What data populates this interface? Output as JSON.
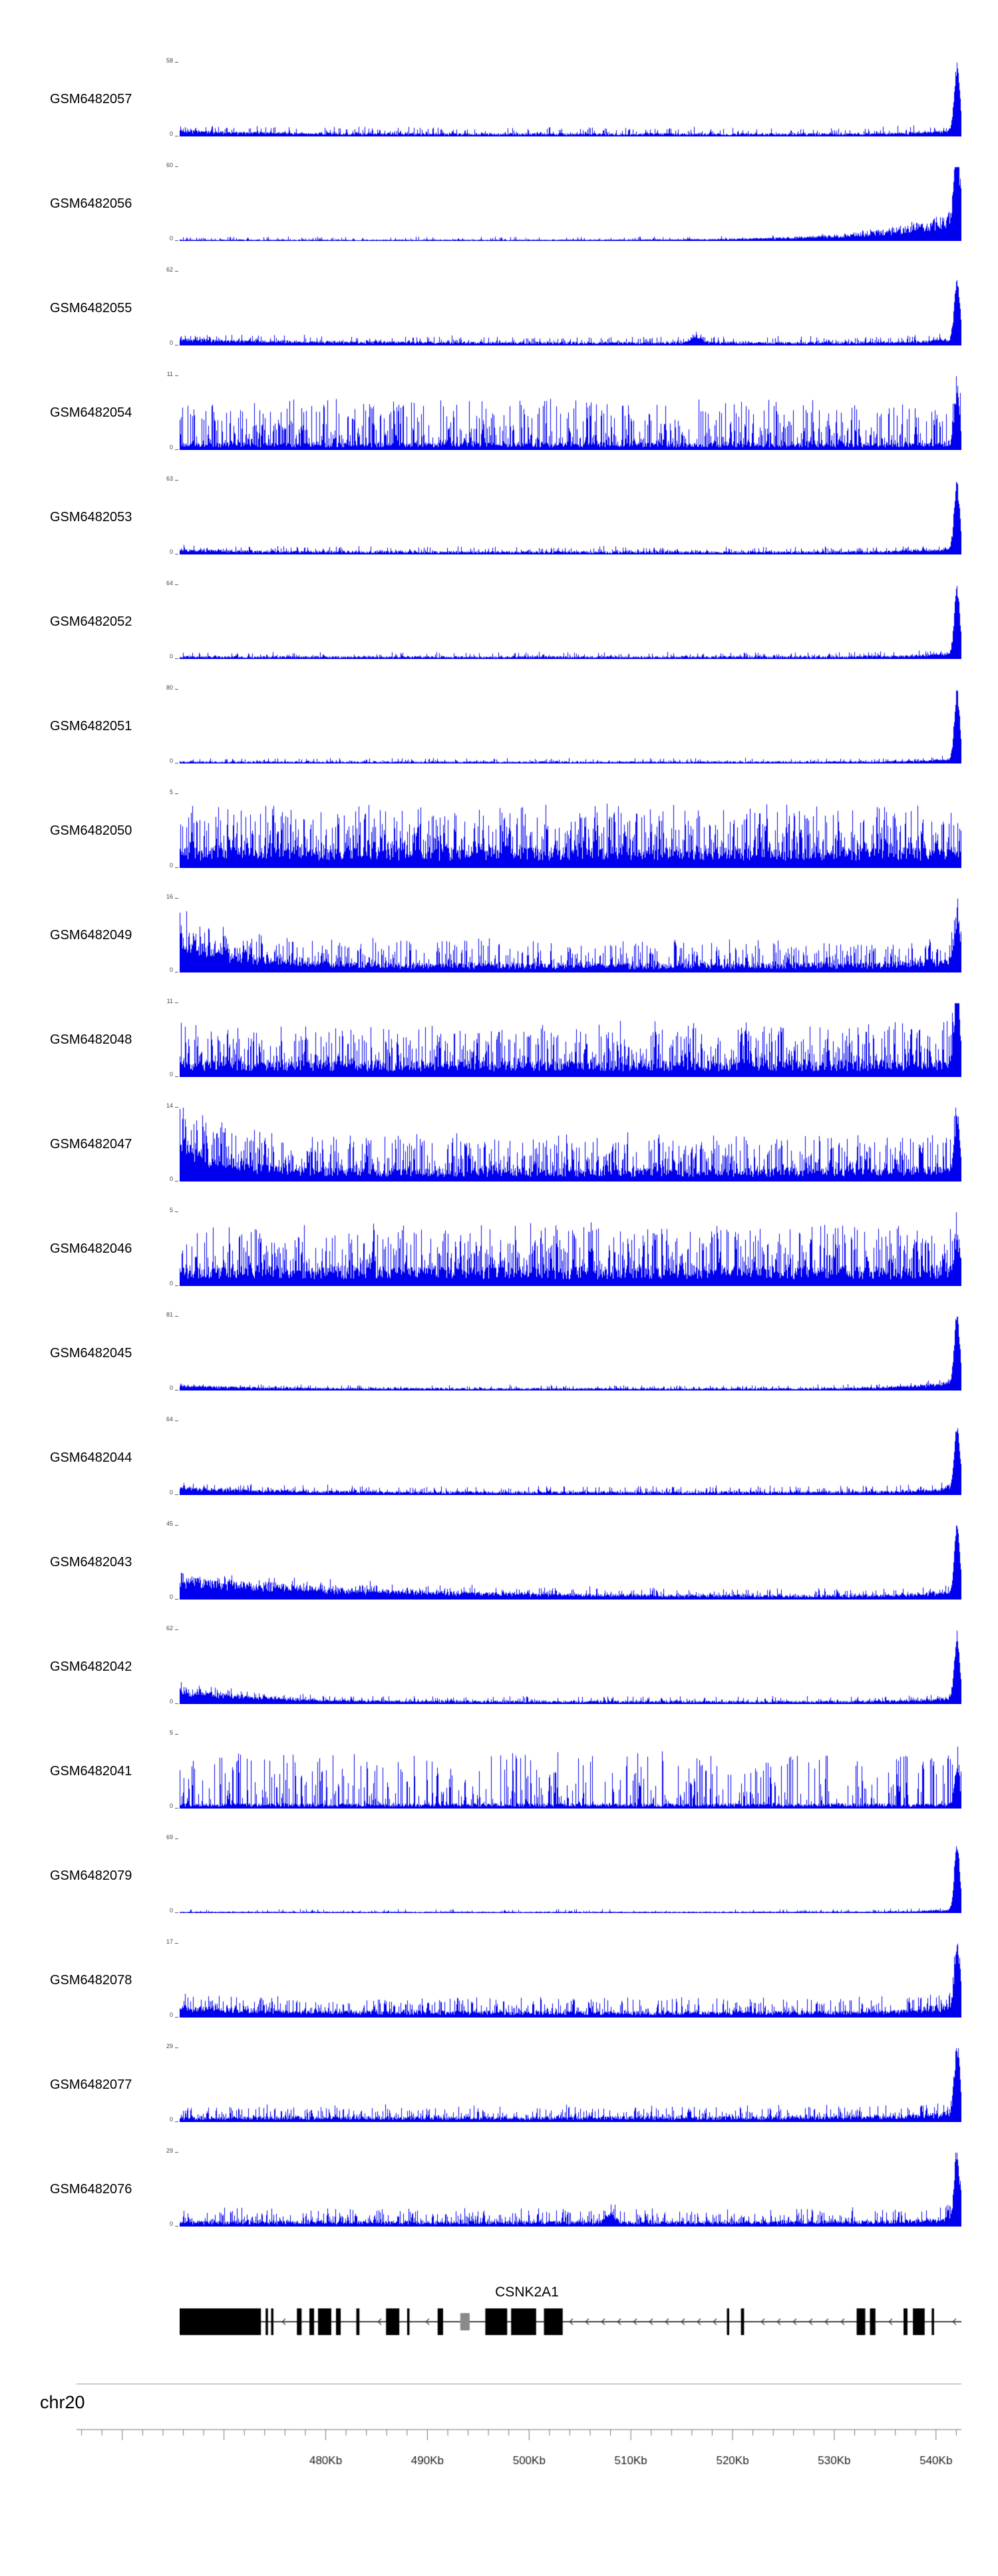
{
  "colors": {
    "signal": "#0000EE",
    "gene": "#000000",
    "gene_gray": "#8a8a8a",
    "axis": "#666666",
    "ruler_line": "#777777",
    "ruler_text": "#222222",
    "background": "#ffffff"
  },
  "chart_data": {
    "type": "area",
    "title": "",
    "description": "Genome browser coverage tracks for 21 GSM samples over chr20 around the CSNK2A1 gene",
    "region": {
      "chromosome": "chr20"
    },
    "tracks": [
      {
        "label": "GSM6482057",
        "ymax": 58,
        "ymin": 0,
        "ylim": [
          0,
          58
        ],
        "signal": {
          "base": 0.045,
          "sf": 0.3,
          "sa": 0.09,
          "left": 0.05,
          "ld": 0.12,
          "ramp": 0.1,
          "rw": 0.04,
          "peak": 0.92
        }
      },
      {
        "label": "GSM6482056",
        "ymax": 60,
        "ymin": 0,
        "ylim": [
          0,
          60
        ],
        "signal": {
          "base": 0.02,
          "sf": 0.2,
          "sa": 0.04,
          "ramp": 0.45,
          "rw": 0.09,
          "peak": 1.0
        }
      },
      {
        "label": "GSM6482055",
        "ymax": 62,
        "ymin": 0,
        "ylim": [
          0,
          62
        ],
        "signal": {
          "base": 0.05,
          "sf": 0.3,
          "sa": 0.08,
          "left": 0.06,
          "ld": 0.15,
          "ramp": 0.08,
          "peak": 0.85,
          "bumps": [
            {
              "p": 0.66,
              "h": 0.1,
              "w": 0.008
            }
          ]
        }
      },
      {
        "label": "GSM6482054",
        "ymax": 11,
        "ymin": 0,
        "ylim": [
          0,
          11
        ],
        "signal": {
          "base": 0.1,
          "sf": 0.55,
          "sa": 0.6,
          "peak": 0.75
        }
      },
      {
        "label": "GSM6482053",
        "ymax": 63,
        "ymin": 0,
        "ylim": [
          0,
          63
        ],
        "signal": {
          "base": 0.045,
          "sf": 0.28,
          "sa": 0.07,
          "left": 0.04,
          "ld": 0.1,
          "ramp": 0.08,
          "peak": 0.92
        }
      },
      {
        "label": "GSM6482052",
        "ymax": 64,
        "ymin": 0,
        "ylim": [
          0,
          64
        ],
        "signal": {
          "base": 0.04,
          "sf": 0.25,
          "sa": 0.06,
          "ramp": 0.08,
          "peak": 0.92
        }
      },
      {
        "label": "GSM6482051",
        "ymax": 80,
        "ymin": 0,
        "ylim": [
          0,
          80
        ],
        "signal": {
          "base": 0.03,
          "sf": 0.22,
          "sa": 0.05,
          "ramp": 0.06,
          "peak": 0.96
        }
      },
      {
        "label": "GSM6482050",
        "ymax": 5,
        "ymin": 0,
        "ylim": [
          0,
          5
        ],
        "signal": {
          "base": 0.28,
          "sf": 0.65,
          "sa": 0.6
        }
      },
      {
        "label": "GSM6482049",
        "ymax": 16,
        "ymin": 0,
        "ylim": [
          0,
          16
        ],
        "signal": {
          "base": 0.13,
          "sf": 0.5,
          "sa": 0.35,
          "left": 0.5,
          "ld": 0.07,
          "ramp": 0.12,
          "peak": 0.55
        }
      },
      {
        "label": "GSM6482048",
        "ymax": 11,
        "ymin": 0,
        "ylim": [
          0,
          11
        ],
        "signal": {
          "base": 0.22,
          "sf": 0.6,
          "sa": 0.55,
          "ramp": 0.05,
          "peak": 0.95
        }
      },
      {
        "label": "GSM6482047",
        "ymax": 14,
        "ymin": 0,
        "ylim": [
          0,
          14
        ],
        "signal": {
          "base": 0.18,
          "sf": 0.55,
          "sa": 0.48,
          "left": 0.55,
          "ld": 0.05,
          "ramp": 0.05,
          "peak": 0.7
        }
      },
      {
        "label": "GSM6482046",
        "ymax": 5,
        "ymin": 0,
        "ylim": [
          0,
          5
        ],
        "signal": {
          "base": 0.26,
          "sf": 0.62,
          "sa": 0.6,
          "peak": 0.45
        }
      },
      {
        "label": "GSM6482045",
        "ymax": 81,
        "ymin": 0,
        "ylim": [
          0,
          81
        ],
        "signal": {
          "base": 0.035,
          "sf": 0.22,
          "sa": 0.05,
          "left": 0.05,
          "ld": 0.1,
          "ramp": 0.16,
          "rw": 0.05,
          "peak": 0.93
        }
      },
      {
        "label": "GSM6482044",
        "ymax": 64,
        "ymin": 0,
        "ylim": [
          0,
          64
        ],
        "signal": {
          "base": 0.05,
          "sf": 0.28,
          "sa": 0.08,
          "left": 0.09,
          "ld": 0.1,
          "ramp": 0.1,
          "peak": 0.88
        }
      },
      {
        "label": "GSM6482043",
        "ymax": 45,
        "ymin": 0,
        "ylim": [
          0,
          45
        ],
        "signal": {
          "base": 0.06,
          "sf": 0.35,
          "sa": 0.1,
          "left": 0.3,
          "ld": 0.22,
          "ramp": 0.1,
          "peak": 0.92
        }
      },
      {
        "label": "GSM6482042",
        "ymax": 62,
        "ymin": 0,
        "ylim": [
          0,
          62
        ],
        "signal": {
          "base": 0.045,
          "sf": 0.28,
          "sa": 0.07,
          "left": 0.22,
          "ld": 0.09,
          "ramp": 0.08,
          "peak": 0.88
        }
      },
      {
        "label": "GSM6482041",
        "ymax": 5,
        "ymin": 0,
        "ylim": [
          0,
          5
        ],
        "signal": {
          "base": 0.07,
          "sf": 0.38,
          "sa": 0.7,
          "peak": 0.5
        }
      },
      {
        "label": "GSM6482079",
        "ymax": 69,
        "ymin": 0,
        "ylim": [
          0,
          69
        ],
        "signal": {
          "base": 0.02,
          "sf": 0.2,
          "sa": 0.035,
          "ramp": 0.05,
          "peak": 0.93
        }
      },
      {
        "label": "GSM6482078",
        "ymax": 17,
        "ymin": 0,
        "ylim": [
          0,
          17
        ],
        "signal": {
          "base": 0.09,
          "sf": 0.45,
          "sa": 0.2,
          "left": 0.1,
          "ld": 0.1,
          "ramp": 0.14,
          "peak": 0.88
        }
      },
      {
        "label": "GSM6482077",
        "ymax": 29,
        "ymin": 0,
        "ylim": [
          0,
          29
        ],
        "signal": {
          "base": 0.08,
          "sf": 0.4,
          "sa": 0.16,
          "ramp": 0.1,
          "peak": 0.95
        }
      },
      {
        "label": "GSM6482076",
        "ymax": 29,
        "ymin": 0,
        "ylim": [
          0,
          29
        ],
        "signal": {
          "base": 0.08,
          "sf": 0.4,
          "sa": 0.18,
          "ramp": 0.08,
          "peak": 0.9,
          "bumps": [
            {
              "p": 0.55,
              "h": 0.15,
              "w": 0.006
            }
          ]
        }
      }
    ],
    "gene": {
      "name": "CSNK2A1",
      "strand": "-",
      "exons": [
        {
          "s": 0.0,
          "e": 0.104
        },
        {
          "s": 0.11,
          "e": 0.113
        },
        {
          "s": 0.117,
          "e": 0.12
        },
        {
          "s": 0.15,
          "e": 0.156
        },
        {
          "s": 0.166,
          "e": 0.172
        },
        {
          "s": 0.177,
          "e": 0.194
        },
        {
          "s": 0.2,
          "e": 0.206
        },
        {
          "s": 0.226,
          "e": 0.23
        },
        {
          "s": 0.264,
          "e": 0.281
        },
        {
          "s": 0.291,
          "e": 0.294
        },
        {
          "s": 0.33,
          "e": 0.337
        },
        {
          "s": 0.359,
          "e": 0.371,
          "c": "gray",
          "h": "short"
        },
        {
          "s": 0.391,
          "e": 0.419
        },
        {
          "s": 0.424,
          "e": 0.456
        },
        {
          "s": 0.466,
          "e": 0.49
        },
        {
          "s": 0.7,
          "e": 0.703
        },
        {
          "s": 0.718,
          "e": 0.722
        },
        {
          "s": 0.866,
          "e": 0.877
        },
        {
          "s": 0.883,
          "e": 0.89
        },
        {
          "s": 0.926,
          "e": 0.931
        },
        {
          "s": 0.938,
          "e": 0.953
        },
        {
          "s": 0.962,
          "e": 0.965
        }
      ]
    },
    "ruler": {
      "labels": [
        "480Kb",
        "490Kb",
        "500Kb",
        "510Kb",
        "520Kb",
        "530Kb",
        "540Kb"
      ],
      "label_start_kb": 480,
      "label_step_kb": 10,
      "minor_step_kb": 2,
      "range_kb": [
        455.5,
        542.5
      ]
    }
  }
}
